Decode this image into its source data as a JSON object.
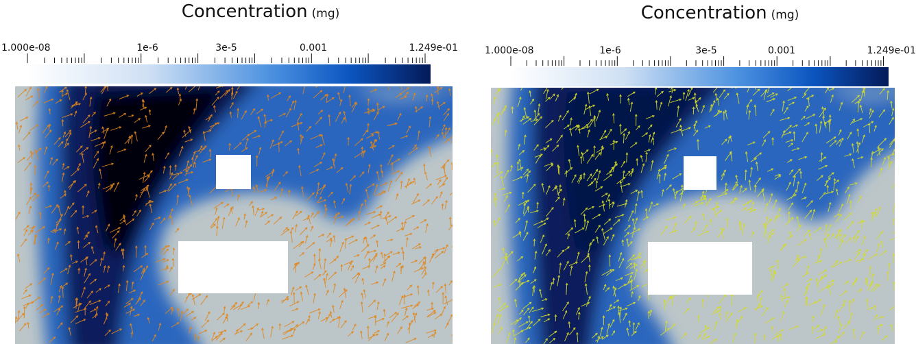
{
  "panels": [
    {
      "title": "Concentration",
      "units": "(mg)",
      "colorbar": {
        "labels": [
          "1.000e-08",
          "1e-6",
          "3e-5",
          "0.001",
          "1.249e-01"
        ]
      }
    },
    {
      "title": "Concentration",
      "units": "(mg)",
      "colorbar": {
        "labels": [
          "1.000e-08",
          "1e-6",
          "3e-5",
          "0.001",
          "1.249e-01"
        ]
      }
    }
  ]
}
